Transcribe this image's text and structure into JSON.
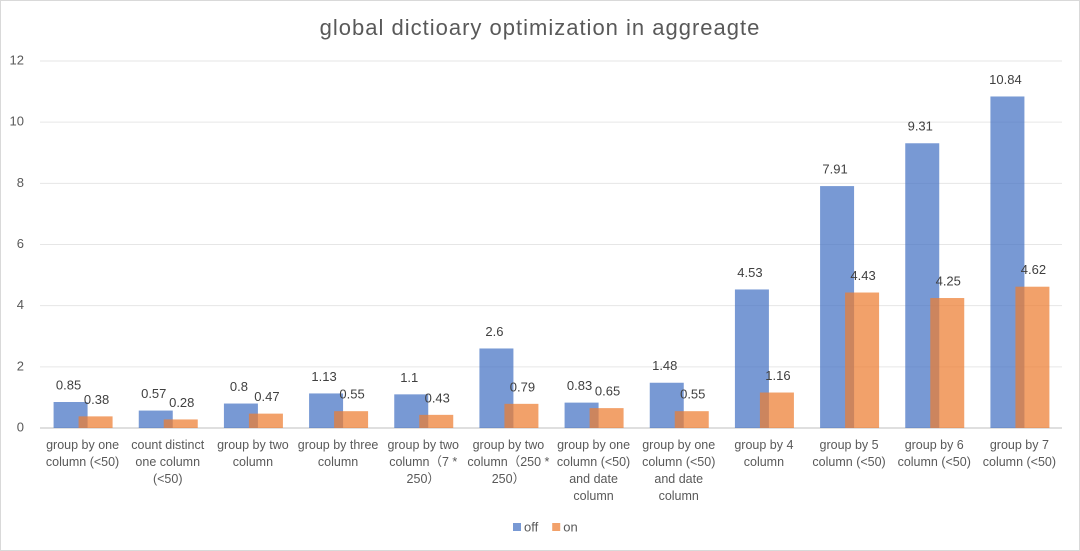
{
  "chart_data": {
    "type": "bar",
    "title": "global dictioary optimization in aggreagte",
    "categories": [
      "group by one column (<50)",
      "count distinct one column (<50)",
      "group by two column",
      "group by three column",
      "group by two column（7 * 250）",
      "group by two column（250 * 250）",
      "group by one column (<50) and date column",
      "group by one column (<50) and date column",
      "group by 4 column",
      "group by 5 column (<50)",
      "group by 6 column (<50)",
      "group by 7 column (<50)"
    ],
    "series": [
      {
        "name": "off",
        "color": "#4472c4",
        "values": [
          0.85,
          0.57,
          0.8,
          1.13,
          1.1,
          2.6,
          0.83,
          1.48,
          4.53,
          7.91,
          9.31,
          10.84
        ]
      },
      {
        "name": "on",
        "color": "#ed7d31",
        "values": [
          0.38,
          0.28,
          0.47,
          0.55,
          0.43,
          0.79,
          0.65,
          0.55,
          1.16,
          4.43,
          4.25,
          4.62
        ]
      }
    ],
    "ylim": [
      0,
      12
    ],
    "yticks": [
      0,
      2,
      4,
      6,
      8,
      10,
      12
    ],
    "grid": true,
    "legend": "bottom"
  }
}
